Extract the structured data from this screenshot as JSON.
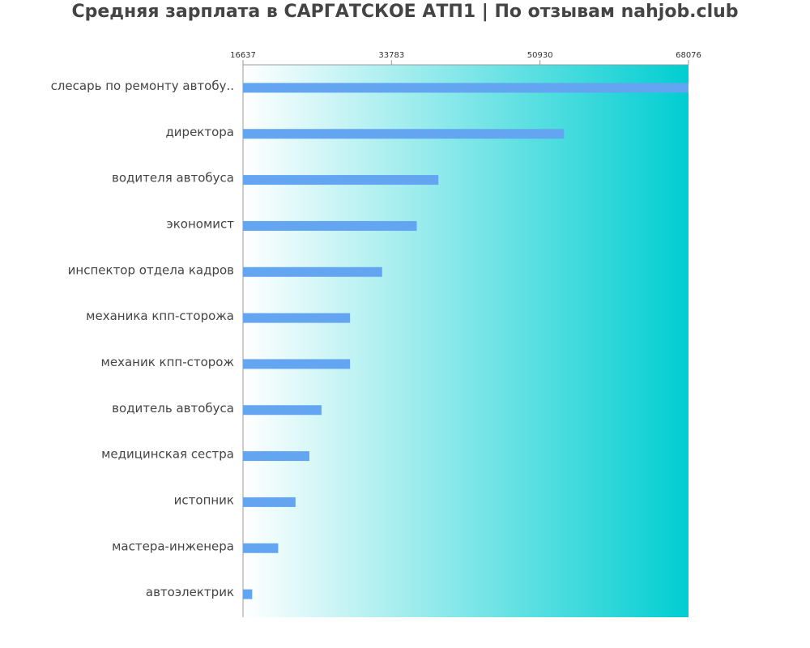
{
  "chart_data": {
    "type": "hbar",
    "title": "Средняя зарплата в САРГАТСКОЕ АТП1 | По отзывам nahjob.club",
    "categories": [
      "слесарь по ремонту автобу..",
      "директора",
      "водителя автобуса",
      "экономист",
      "инспектор отдела кадров",
      "механика кпп-сторожа",
      "механик кпп-сторож",
      "водитель автобуса",
      "медицинская сестра",
      "истопник",
      "мастера-инженера",
      "автоэлектрик"
    ],
    "values": [
      68076,
      53700,
      39200,
      36700,
      32700,
      29000,
      29000,
      25700,
      24300,
      22700,
      20700,
      17700
    ],
    "color": "#63a5f0",
    "xlim": [
      16637,
      68076
    ],
    "xticks": [
      16637,
      33783,
      50930,
      68076
    ]
  }
}
